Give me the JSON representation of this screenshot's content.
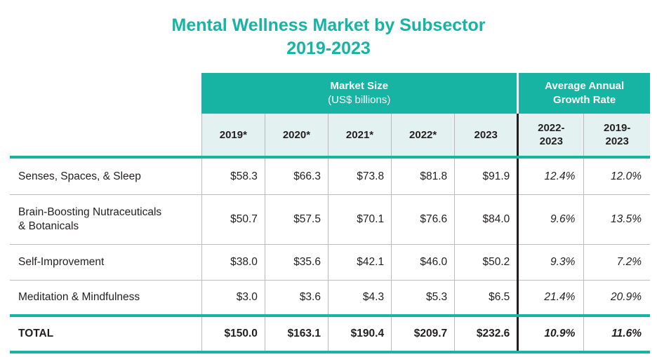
{
  "title": {
    "line1": "Mental Wellness Market by Subsector",
    "line2": "2019-2023"
  },
  "header": {
    "market_size": "Market Size",
    "market_size_unit": "(US$ billions)",
    "growth_line1": "Average Annual",
    "growth_line2": "Growth Rate",
    "years": [
      "2019*",
      "2020*",
      "2021*",
      "2022*",
      "2023"
    ],
    "growth_periods": [
      {
        "line1": "2022-",
        "line2": "2023"
      },
      {
        "line1": "2019-",
        "line2": "2023"
      }
    ]
  },
  "rows": [
    {
      "label": "Senses, Spaces, & Sleep",
      "values": [
        "$58.3",
        "$66.3",
        "$73.8",
        "$81.8",
        "$91.9"
      ],
      "growth": [
        "12.4%",
        "12.0%"
      ]
    },
    {
      "label_line1": "Brain-Boosting Nutraceuticals",
      "label_line2": "& Botanicals",
      "values": [
        "$50.7",
        "$57.5",
        "$70.1",
        "$76.6",
        "$84.0"
      ],
      "growth": [
        "9.6%",
        "13.5%"
      ]
    },
    {
      "label": "Self-Improvement",
      "values": [
        "$38.0",
        "$35.6",
        "$42.1",
        "$46.0",
        "$50.2"
      ],
      "growth": [
        "9.3%",
        "7.2%"
      ]
    },
    {
      "label": "Meditation & Mindfulness",
      "values": [
        "$3.0",
        "$3.6",
        "$4.3",
        "$5.3",
        "$6.5"
      ],
      "growth": [
        "21.4%",
        "20.9%"
      ]
    }
  ],
  "total": {
    "label": "TOTAL",
    "values": [
      "$150.0",
      "$163.1",
      "$190.4",
      "$209.7",
      "$232.6"
    ],
    "growth": [
      "10.9%",
      "11.6%"
    ]
  },
  "colors": {
    "accent": "#17b3a3",
    "header_bg": "#e3f2f0",
    "text": "#231f20"
  }
}
